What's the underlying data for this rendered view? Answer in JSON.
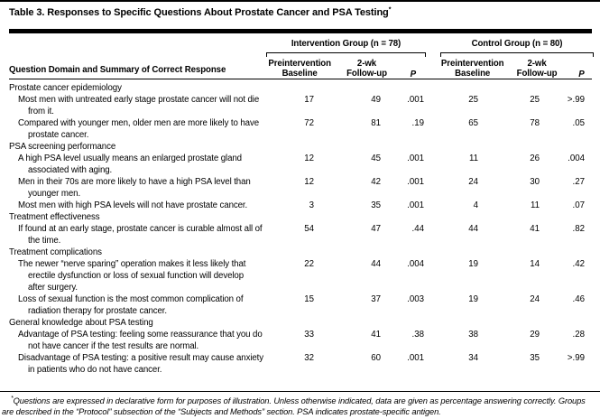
{
  "title": {
    "text": "Table 3. Responses to Specific Questions About Prostate Cancer and PSA Testing",
    "marker": "*"
  },
  "columns": {
    "question": "Question Domain and Summary of Correct Response",
    "groups": [
      {
        "label": "Intervention Group (n = 78)",
        "subcolumns": {
          "baseline": "Preintervention\nBaseline",
          "followup": "2-wk\nFollow-up",
          "p": "P"
        }
      },
      {
        "label": "Control Group (n = 80)",
        "subcolumns": {
          "baseline": "Preintervention\nBaseline",
          "followup": "2-wk\nFollow-up",
          "p": "P"
        }
      }
    ]
  },
  "rows": [
    {
      "type": "section",
      "text": "Prostate cancer epidemiology"
    },
    {
      "type": "question",
      "text": "Most men with untreated early stage prostate cancer will not die\nfrom it.",
      "values": [
        "17",
        "49",
        ".001",
        "25",
        "25",
        ">.99"
      ]
    },
    {
      "type": "question",
      "text": "Compared with younger men, older men are more likely to have\nprostate cancer.",
      "values": [
        "72",
        "81",
        ".19",
        "65",
        "78",
        ".05"
      ]
    },
    {
      "type": "section",
      "text": "PSA screening performance"
    },
    {
      "type": "question",
      "text": "A high PSA level usually means an enlarged prostate gland\nassociated with aging.",
      "values": [
        "12",
        "45",
        ".001",
        "11",
        "26",
        ".004"
      ]
    },
    {
      "type": "question",
      "text": "Men in their 70s are more likely to have a high PSA level than\nyounger men.",
      "values": [
        "12",
        "42",
        ".001",
        "24",
        "30",
        ".27"
      ]
    },
    {
      "type": "question",
      "text": "Most men with high PSA levels will not have prostate cancer.",
      "values": [
        "3",
        "35",
        ".001",
        "4",
        "11",
        ".07"
      ]
    },
    {
      "type": "section",
      "text": "Treatment effectiveness"
    },
    {
      "type": "question",
      "text": "If found at an early stage, prostate cancer is curable almost all of\nthe time.",
      "values": [
        "54",
        "47",
        ".44",
        "44",
        "41",
        ".82"
      ]
    },
    {
      "type": "section",
      "text": "Treatment complications"
    },
    {
      "type": "question",
      "text": "The newer “nerve sparing” operation makes it less likely that\nerectile dysfunction or loss of sexual function will develop\nafter surgery.",
      "values": [
        "22",
        "44",
        ".004",
        "19",
        "14",
        ".42"
      ]
    },
    {
      "type": "question",
      "text": "Loss of sexual function is the most common complication of\nradiation therapy for prostate cancer.",
      "values": [
        "15",
        "37",
        ".003",
        "19",
        "24",
        ".46"
      ]
    },
    {
      "type": "section",
      "text": "General knowledge about PSA testing"
    },
    {
      "type": "question",
      "text": "Advantage of PSA testing: feeling some reassurance that you do\nnot have cancer if the test results are normal.",
      "values": [
        "33",
        "41",
        ".38",
        "38",
        "29",
        ".28"
      ]
    },
    {
      "type": "question",
      "text": "Disadvantage of PSA testing: a positive result may cause anxiety\nin patients who do not have cancer.",
      "values": [
        "32",
        "60",
        ".001",
        "34",
        "35",
        ">.99"
      ]
    }
  ],
  "footnote": {
    "marker": "*",
    "text": "Questions are expressed in declarative form for purposes of illustration. Unless otherwise indicated, data are given as percentage answering correctly. Groups\nare described in the “Protocol” subsection of the “Subjects and Methods” section. PSA indicates prostate-specific antigen."
  },
  "colors": {
    "text": "#000000",
    "background": "#ffffff",
    "rule": "#000000"
  }
}
